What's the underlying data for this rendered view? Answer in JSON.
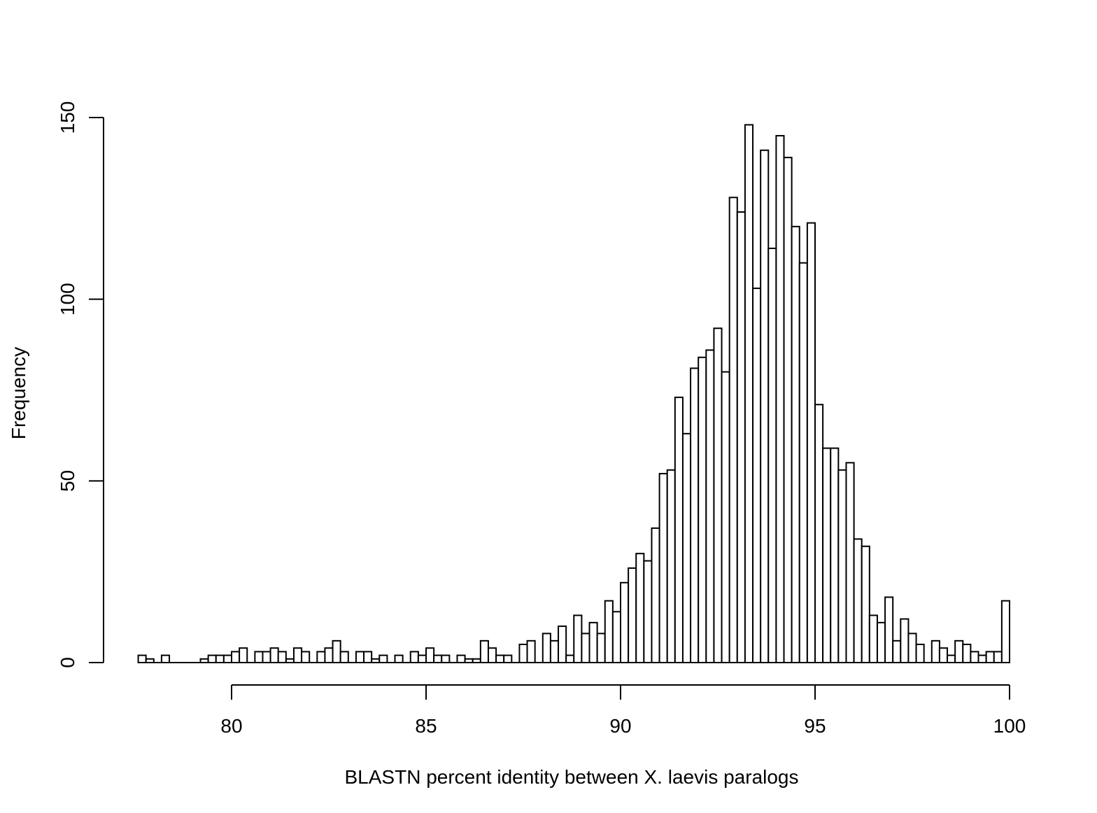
{
  "chart_data": {
    "type": "bar",
    "title": "",
    "xlabel": "BLASTN percent identity between X. laevis paralogs",
    "ylabel": "Frequency",
    "x_ticks": [
      80,
      85,
      90,
      95,
      100
    ],
    "y_ticks": [
      0,
      50,
      100,
      150
    ],
    "xlim": [
      80,
      100
    ],
    "ylim": [
      0,
      150
    ],
    "bin_width": 0.2,
    "first_bin_start": 77.6,
    "values": [
      2,
      1,
      0,
      2,
      0,
      0,
      0,
      0,
      1,
      2,
      2,
      2,
      3,
      4,
      0,
      3,
      3,
      4,
      3,
      1,
      4,
      3,
      0,
      3,
      4,
      6,
      3,
      0,
      3,
      3,
      1,
      2,
      0,
      2,
      0,
      3,
      2,
      4,
      2,
      2,
      0,
      2,
      1,
      1,
      6,
      4,
      2,
      2,
      0,
      5,
      6,
      0,
      8,
      6,
      10,
      2,
      13,
      8,
      11,
      8,
      17,
      14,
      22,
      26,
      30,
      28,
      37,
      52,
      53,
      73,
      63,
      81,
      84,
      86,
      92,
      80,
      128,
      124,
      148,
      103,
      141,
      114,
      145,
      139,
      120,
      110,
      121,
      71,
      59,
      59,
      53,
      55,
      34,
      32,
      13,
      11,
      18,
      6,
      12,
      8,
      5,
      0,
      6,
      4,
      2,
      6,
      5,
      3,
      2,
      3,
      3,
      17
    ]
  }
}
